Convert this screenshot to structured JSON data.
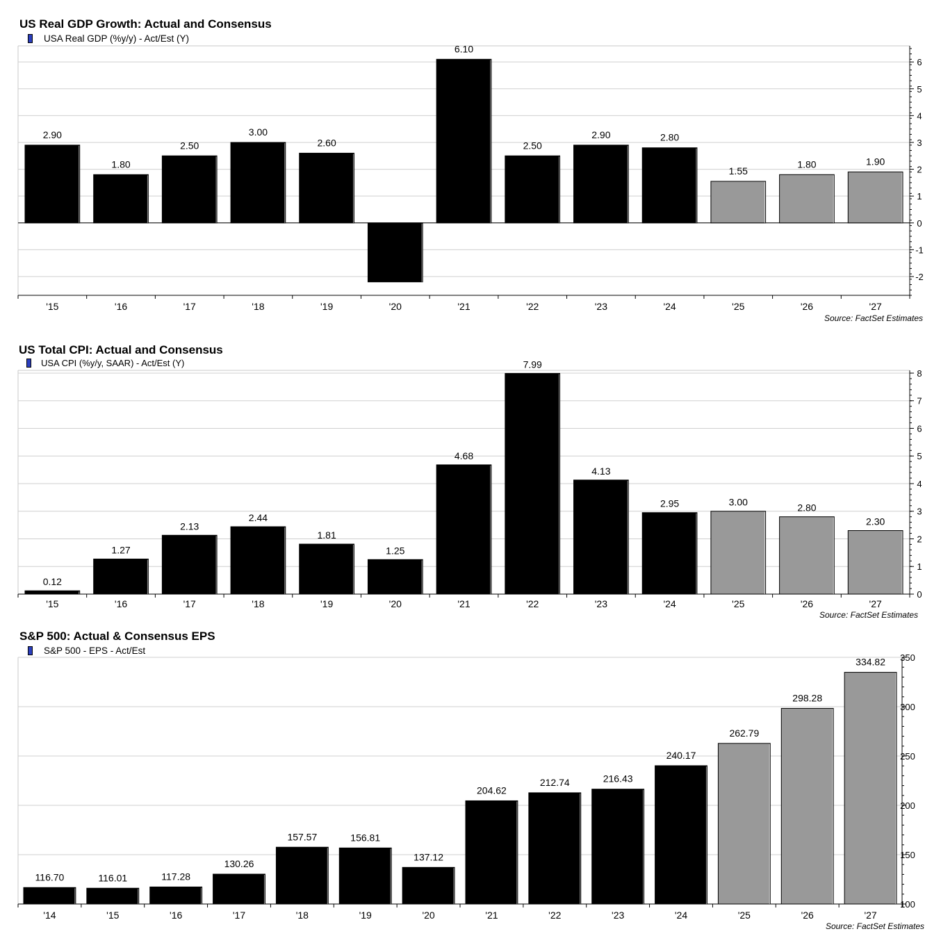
{
  "chart_data": [
    {
      "type": "bar",
      "title": "US Real GDP Growth: Actual and Consensus",
      "legend": "USA Real GDP (%y/y) - Act/Est (Y)",
      "source": "Source: FactSet Estimates",
      "categories": [
        "'15",
        "'16",
        "'17",
        "'18",
        "'19",
        "'20",
        "'21",
        "'22",
        "'23",
        "'24",
        "'25",
        "'26",
        "'27"
      ],
      "values": [
        2.9,
        1.8,
        2.5,
        3.0,
        2.6,
        -2.2,
        6.1,
        2.5,
        2.9,
        2.8,
        1.55,
        1.8,
        1.9
      ],
      "value_labels": [
        "2.90",
        "1.80",
        "2.50",
        "3.00",
        "2.60",
        "",
        "6.10",
        "2.50",
        "2.90",
        "2.80",
        "1.55",
        "1.80",
        "1.90"
      ],
      "estimate_flags": [
        false,
        false,
        false,
        false,
        false,
        false,
        false,
        false,
        false,
        false,
        true,
        true,
        true
      ],
      "ylim": [
        -2.7,
        6.6
      ],
      "yticks": [
        -2,
        -1,
        0,
        1,
        2,
        3,
        4,
        5,
        6
      ],
      "ytick_labels": [
        "-2",
        "-1",
        "0",
        "1",
        "2",
        "3",
        "4",
        "5",
        "6"
      ],
      "grid": true,
      "legend_position": "top-left",
      "colors": {
        "actual": "#000000",
        "estimate": "#999999",
        "legend_swatch": "#2b3fbf"
      }
    },
    {
      "type": "bar",
      "title": "US Total CPI: Actual and Consensus",
      "legend": "USA CPI (%y/y, SAAR) - Act/Est (Y)",
      "source": "Source: FactSet Estimates",
      "categories": [
        "'15",
        "'16",
        "'17",
        "'18",
        "'19",
        "'20",
        "'21",
        "'22",
        "'23",
        "'24",
        "'25",
        "'26",
        "'27"
      ],
      "values": [
        0.12,
        1.27,
        2.13,
        2.44,
        1.81,
        1.25,
        4.68,
        7.99,
        4.13,
        2.95,
        3.0,
        2.8,
        2.3
      ],
      "value_labels": [
        "0.12",
        "1.27",
        "2.13",
        "2.44",
        "1.81",
        "1.25",
        "4.68",
        "7.99",
        "4.13",
        "2.95",
        "3.00",
        "2.80",
        "2.30"
      ],
      "estimate_flags": [
        false,
        false,
        false,
        false,
        false,
        false,
        false,
        false,
        false,
        false,
        true,
        true,
        true
      ],
      "ylim": [
        0,
        8.1
      ],
      "yticks": [
        0,
        1,
        2,
        3,
        4,
        5,
        6,
        7,
        8
      ],
      "ytick_labels": [
        "0",
        "1",
        "2",
        "3",
        "4",
        "5",
        "6",
        "7",
        "8"
      ],
      "grid": true,
      "legend_position": "top-left",
      "colors": {
        "actual": "#000000",
        "estimate": "#999999",
        "legend_swatch": "#2b3fbf"
      }
    },
    {
      "type": "bar",
      "title": "S&P 500: Actual & Consensus EPS",
      "legend": "S&P 500 - EPS - Act/Est",
      "source": "Source: FactSet Estimates",
      "categories": [
        "'14",
        "'15",
        "'16",
        "'17",
        "'18",
        "'19",
        "'20",
        "'21",
        "'22",
        "'23",
        "'24",
        "'25",
        "'26",
        "'27"
      ],
      "values": [
        116.7,
        116.01,
        117.28,
        130.26,
        157.57,
        156.81,
        137.12,
        204.62,
        212.74,
        216.43,
        240.17,
        262.79,
        298.28,
        334.82
      ],
      "value_labels": [
        "116.70",
        "116.01",
        "117.28",
        "130.26",
        "157.57",
        "156.81",
        "137.12",
        "204.62",
        "212.74",
        "216.43",
        "240.17",
        "262.79",
        "298.28",
        "334.82"
      ],
      "estimate_flags": [
        false,
        false,
        false,
        false,
        false,
        false,
        false,
        false,
        false,
        false,
        false,
        true,
        true,
        true
      ],
      "ylim": [
        100,
        350
      ],
      "yticks": [
        100,
        150,
        200,
        250,
        300,
        350
      ],
      "ytick_labels": [
        "100",
        "150",
        "200",
        "250",
        "300",
        "350"
      ],
      "grid": true,
      "legend_position": "top-left",
      "colors": {
        "actual": "#000000",
        "estimate": "#999999",
        "legend_swatch": "#2b3fbf"
      }
    }
  ]
}
